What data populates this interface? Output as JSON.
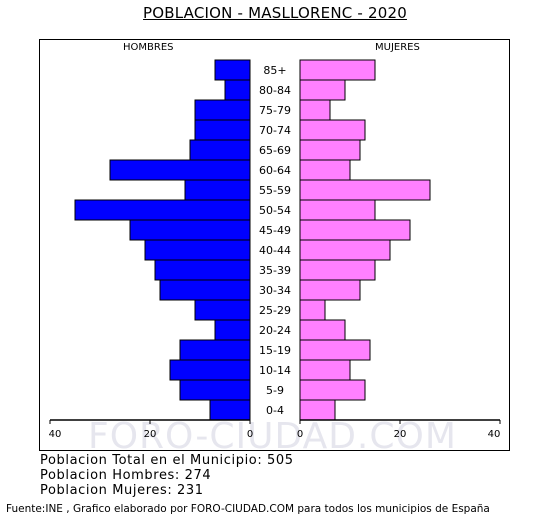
{
  "title": "POBLACION - MASLLORENC - 2020",
  "watermark": "FORO-CIUDAD.COM",
  "colors": {
    "hombres": "#0000ff",
    "mujeres": "#ff80ff"
  },
  "info": {
    "total": "Poblacion Total en el Municipio: 505",
    "hombres": "Poblacion Hombres: 274",
    "mujeres": "Poblacion Mujeres: 231"
  },
  "source": "Fuente:INE , Grafico elaborado por FORO-CIUDAD.COM para todos los municipios de España",
  "chart_data": {
    "type": "bar",
    "orientation": "horizontal-pyramid",
    "left_label": "HOMBRES",
    "right_label": "MUJERES",
    "categories": [
      "85+",
      "80-84",
      "75-79",
      "70-74",
      "65-69",
      "60-64",
      "55-59",
      "50-54",
      "45-49",
      "40-44",
      "35-39",
      "30-34",
      "25-29",
      "20-24",
      "15-19",
      "10-14",
      "5-9",
      "0-4"
    ],
    "series": [
      {
        "name": "HOMBRES",
        "values": [
          7,
          5,
          11,
          11,
          12,
          28,
          13,
          35,
          24,
          21,
          19,
          18,
          11,
          7,
          14,
          16,
          14,
          8
        ]
      },
      {
        "name": "MUJERES",
        "values": [
          15,
          9,
          6,
          13,
          12,
          10,
          26,
          15,
          22,
          18,
          15,
          12,
          5,
          9,
          14,
          10,
          13,
          7
        ]
      }
    ],
    "xlim": [
      0,
      40
    ],
    "xticks_left": [
      "40",
      "20",
      "0"
    ],
    "xticks_right": [
      "0",
      "20",
      "40"
    ]
  }
}
